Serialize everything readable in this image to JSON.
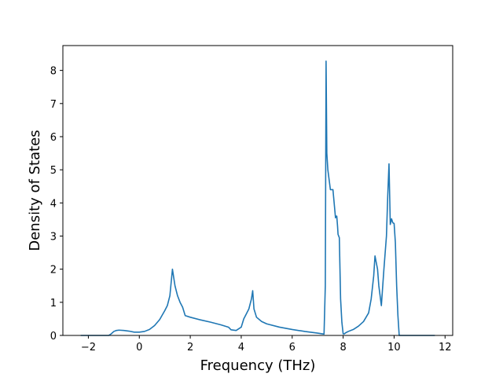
{
  "chart_data": {
    "type": "line",
    "title": "",
    "xlabel": "Frequency (THz)",
    "ylabel": "Density of States",
    "xlim": [
      -3.0,
      12.3
    ],
    "ylim": [
      0,
      8.75
    ],
    "xticks": [
      -2,
      0,
      2,
      4,
      6,
      8,
      10,
      12
    ],
    "yticks": [
      0,
      1,
      2,
      3,
      4,
      5,
      6,
      7,
      8
    ],
    "xtick_labels": [
      "−2",
      "0",
      "2",
      "4",
      "6",
      "8",
      "10",
      "12"
    ],
    "ytick_labels": [
      "0",
      "1",
      "2",
      "3",
      "4",
      "5",
      "6",
      "7",
      "8"
    ],
    "grid": false,
    "legend": null,
    "line_color": "#1f77b4",
    "series": [
      {
        "x": [
          -2.3,
          -1.2,
          -1.1,
          -1.0,
          -0.9,
          -0.8,
          -0.6,
          -0.4,
          -0.2,
          0.0,
          0.2,
          0.4,
          0.6,
          0.8,
          1.0,
          1.1,
          1.2,
          1.3,
          1.4,
          1.5,
          1.6,
          1.7,
          1.8,
          2.0,
          2.4,
          2.8,
          3.2,
          3.5,
          3.6,
          3.8,
          3.9,
          4.0,
          4.1,
          4.2,
          4.3,
          4.4,
          4.45,
          4.5,
          4.6,
          4.8,
          5.0,
          5.5,
          6.0,
          6.5,
          7.0,
          7.25,
          7.3,
          7.33,
          7.36,
          7.4,
          7.5,
          7.6,
          7.7,
          7.72,
          7.75,
          7.78,
          7.8,
          7.85,
          7.9,
          7.95,
          8.0,
          8.05,
          8.1,
          8.2,
          8.4,
          8.6,
          8.8,
          9.0,
          9.1,
          9.2,
          9.25,
          9.3,
          9.35,
          9.4,
          9.5,
          9.6,
          9.7,
          9.75,
          9.8,
          9.85,
          9.9,
          9.95,
          10.0,
          10.05,
          10.1,
          10.15,
          10.2,
          10.25,
          10.3,
          10.35,
          10.4,
          10.5,
          11.6
        ],
        "y": [
          0.0,
          0.0,
          0.05,
          0.12,
          0.15,
          0.16,
          0.15,
          0.13,
          0.1,
          0.1,
          0.12,
          0.18,
          0.3,
          0.48,
          0.75,
          0.9,
          1.2,
          2.0,
          1.5,
          1.2,
          1.0,
          0.85,
          0.6,
          0.55,
          0.47,
          0.4,
          0.32,
          0.25,
          0.17,
          0.15,
          0.2,
          0.25,
          0.5,
          0.65,
          0.8,
          1.1,
          1.35,
          0.8,
          0.55,
          0.42,
          0.35,
          0.25,
          0.18,
          0.12,
          0.07,
          0.04,
          1.5,
          8.28,
          5.5,
          5.0,
          4.4,
          4.4,
          3.55,
          3.6,
          3.6,
          3.3,
          3.05,
          2.95,
          1.1,
          0.4,
          0.05,
          0.05,
          0.08,
          0.12,
          0.18,
          0.28,
          0.42,
          0.68,
          1.1,
          1.8,
          2.4,
          2.2,
          2.0,
          1.5,
          0.9,
          2.0,
          3.0,
          4.2,
          5.18,
          3.35,
          3.52,
          3.4,
          3.38,
          2.8,
          1.5,
          0.6,
          0.0,
          0.0,
          0.0,
          0.0,
          0.0,
          0.0,
          0.0
        ]
      }
    ]
  }
}
